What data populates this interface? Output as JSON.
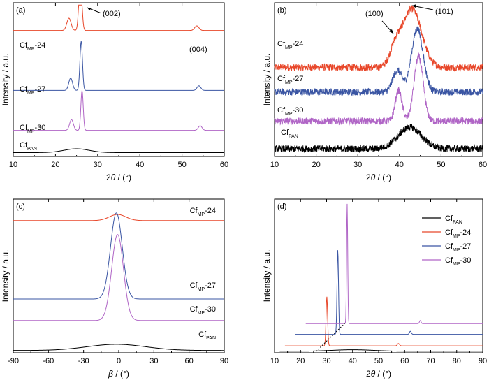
{
  "chart_data": [
    {
      "panel": "(a)",
      "type": "line",
      "xlabel": "2θ / (°)",
      "ylabel": "Intensity / a.u.",
      "xlim": [
        10,
        60
      ],
      "xticks": [
        10,
        20,
        30,
        40,
        50,
        60
      ],
      "annotations": [
        "(002)",
        "(004)"
      ],
      "series": [
        {
          "name": "CfMP-24",
          "color": "#e8472a",
          "offset": 0.82,
          "peaks": [
            {
              "x": 23.2,
              "h": 0.08,
              "w": 0.5
            },
            {
              "x": 25.9,
              "h": 0.35,
              "w": 0.35
            },
            {
              "x": 53.5,
              "h": 0.03,
              "w": 0.5
            }
          ]
        },
        {
          "name": "CfMP-27",
          "color": "#3a55a3",
          "offset": 0.43,
          "peaks": [
            {
              "x": 23.6,
              "h": 0.08,
              "w": 0.45
            },
            {
              "x": 26.1,
              "h": 0.32,
              "w": 0.3
            },
            {
              "x": 54.0,
              "h": 0.03,
              "w": 0.45
            }
          ]
        },
        {
          "name": "CfMP-30",
          "color": "#b065c6",
          "offset": 0.17,
          "peaks": [
            {
              "x": 23.8,
              "h": 0.07,
              "w": 0.45
            },
            {
              "x": 26.3,
              "h": 0.26,
              "w": 0.28
            },
            {
              "x": 54.3,
              "h": 0.03,
              "w": 0.45
            }
          ]
        },
        {
          "name": "CfPAN",
          "color": "#000000",
          "offset": 0.025,
          "peaks": [
            {
              "x": 25.0,
              "h": 0.025,
              "w": 3.0
            }
          ]
        }
      ]
    },
    {
      "panel": "(b)",
      "type": "line",
      "xlabel": "2θ / (°)",
      "ylabel": "Intensity / a.u.",
      "xlim": [
        10,
        60
      ],
      "xticks": [
        10,
        20,
        30,
        40,
        50,
        60
      ],
      "annotations": [
        "(100)",
        "(101)"
      ],
      "series": [
        {
          "name": "CfMP-24",
          "color": "#e8472a",
          "offset": 0.58,
          "peaks": [
            {
              "x": 39.0,
              "h": 0.11,
              "w": 1.3
            },
            {
              "x": 43.0,
              "h": 0.38,
              "w": 2.3
            }
          ]
        },
        {
          "name": "CfMP-27",
          "color": "#3a55a3",
          "offset": 0.42,
          "peaks": [
            {
              "x": 39.5,
              "h": 0.14,
              "w": 1.1
            },
            {
              "x": 44.3,
              "h": 0.41,
              "w": 1.4
            }
          ]
        },
        {
          "name": "CfMP-30",
          "color": "#b065c6",
          "offset": 0.23,
          "peaks": [
            {
              "x": 39.8,
              "h": 0.2,
              "w": 0.8
            },
            {
              "x": 44.6,
              "h": 0.42,
              "w": 1.1
            }
          ]
        },
        {
          "name": "CfPAN",
          "color": "#000000",
          "offset": 0.05,
          "peaks": [
            {
              "x": 42.5,
              "h": 0.14,
              "w": 2.8
            }
          ]
        }
      ]
    },
    {
      "panel": "(c)",
      "type": "line",
      "xlabel": "β / (°)",
      "ylabel": "Intensity / a.u.",
      "xlim": [
        -90,
        90
      ],
      "xticks": [
        -90,
        -60,
        -30,
        0,
        30,
        60,
        90
      ],
      "series": [
        {
          "name": "CfMP-24",
          "color": "#e8472a",
          "offset": 0.86,
          "peaks": [
            {
              "x": -1.0,
              "h": 0.04,
              "w": 7.0
            }
          ]
        },
        {
          "name": "CfMP-27",
          "color": "#3a55a3",
          "offset": 0.35,
          "peaks": [
            {
              "x": -2.0,
              "h": 0.56,
              "w": 5.0
            }
          ]
        },
        {
          "name": "CfMP-30",
          "color": "#b065c6",
          "offset": 0.21,
          "peaks": [
            {
              "x": -1.0,
              "h": 0.56,
              "w": 5.0
            }
          ]
        },
        {
          "name": "CfPAN",
          "color": "#000000",
          "offset": 0.015,
          "peaks": [
            {
              "x": -2.0,
              "h": 0.04,
              "w": 25.0
            }
          ]
        }
      ]
    },
    {
      "panel": "(d)",
      "type": "line",
      "xlabel": "2θ / (°)",
      "ylabel": "Intensity / a.u.",
      "xlim": [
        10,
        90
      ],
      "xticks": [
        10,
        20,
        30,
        40,
        50,
        60,
        70,
        80,
        90
      ],
      "legend": "top-right",
      "series": [
        {
          "name": "CfPAN",
          "color": "#000000",
          "offset": 0.01,
          "xstart": 12,
          "peaks": [
            {
              "x": 40.0,
              "h": 0.01,
              "w": 8.0
            }
          ]
        },
        {
          "name": "CfMP-24",
          "color": "#e8472a",
          "offset": 0.045,
          "xstart": 14,
          "peaks": [
            {
              "x": 30.1,
              "h": 0.32,
              "w": 0.3
            },
            {
              "x": 57.6,
              "h": 0.015,
              "w": 0.4
            }
          ]
        },
        {
          "name": "CfMP-27",
          "color": "#3a55a3",
          "offset": 0.12,
          "xstart": 18,
          "peaks": [
            {
              "x": 34.3,
              "h": 0.55,
              "w": 0.28
            },
            {
              "x": 62.2,
              "h": 0.02,
              "w": 0.35
            }
          ]
        },
        {
          "name": "CfMP-30",
          "color": "#b065c6",
          "offset": 0.19,
          "xstart": 22,
          "peaks": [
            {
              "x": 37.9,
              "h": 0.78,
              "w": 0.22
            },
            {
              "x": 66.0,
              "h": 0.02,
              "w": 0.3
            }
          ]
        }
      ]
    }
  ]
}
